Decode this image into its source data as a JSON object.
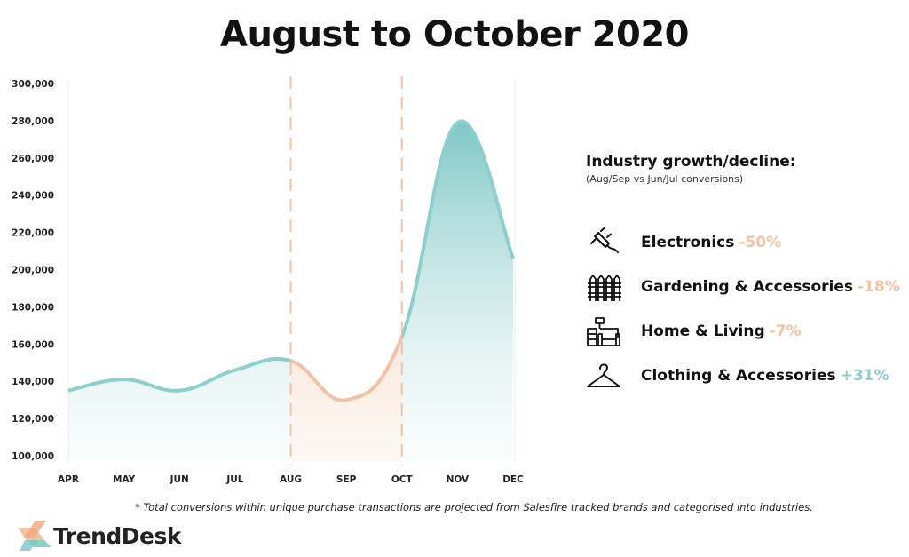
{
  "title": "August to October 2020",
  "chart_data": {
    "type": "area",
    "title": "August to October 2020",
    "categories": [
      "APR",
      "MAY",
      "JUN",
      "JUL",
      "AUG",
      "SEP",
      "OCT",
      "NOV",
      "DEC"
    ],
    "series": [
      {
        "values": [
          135000,
          141000,
          135000,
          146000,
          151000,
          130000,
          164000,
          279000,
          206000
        ]
      }
    ],
    "ylim": [
      100000,
      300000
    ],
    "yticks": [
      "100,000",
      "120,000",
      "140,000",
      "160,000",
      "180,000",
      "200,000",
      "220,000",
      "240,000",
      "260,000",
      "280,000",
      "300,000"
    ],
    "highlight_range": [
      "AUG",
      "OCT"
    ],
    "grid": false,
    "colors": {
      "main": "#8ccfcd",
      "highlight": "#f2c3a3"
    }
  },
  "legend": {
    "heading": "Industry growth/decline:",
    "subheading": "(Aug/Sep vs Jun/Jul conversions)",
    "items": [
      {
        "label": "Electronics",
        "change": "-50%",
        "icon": "plug-icon",
        "color": "#f2c3a3"
      },
      {
        "label": "Gardening & Accessories",
        "change": "-18%",
        "icon": "fence-icon",
        "color": "#f2c3a3"
      },
      {
        "label": "Home & Living",
        "change": "-7%",
        "icon": "armchair-icon",
        "color": "#f2c3a3"
      },
      {
        "label": "Clothing & Accessories",
        "change": "+31%",
        "icon": "hanger-icon",
        "color": "#8ccfcd"
      }
    ]
  },
  "footnote": "* Total conversions within unique purchase transactions are projected from Salesfire tracked brands and categorised into industries.",
  "brand": {
    "name": "TrendDesk"
  }
}
